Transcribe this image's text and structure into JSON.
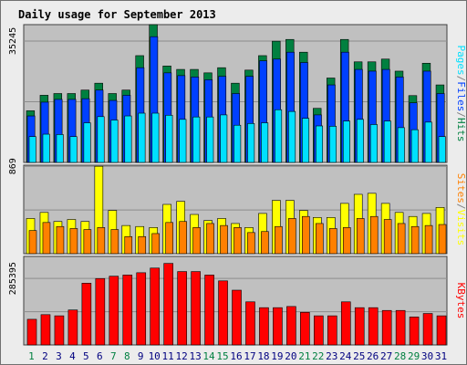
{
  "colors": {
    "hits": "#008040",
    "files": "#0040ff",
    "pages": "#00e0ff",
    "visits": "#ffff00",
    "sites": "#ff8000",
    "kbytes": "#ff0000",
    "title": "#0000a0",
    "weekend": "#008040",
    "weekday": "#000080",
    "panel": "#c0c0c0",
    "grid": "#8c8c8c"
  },
  "chart_data": {
    "type": "bar",
    "title": "Daily usage for September 2013",
    "categories": [
      "1",
      "2",
      "3",
      "4",
      "5",
      "6",
      "7",
      "8",
      "9",
      "10",
      "11",
      "12",
      "13",
      "14",
      "15",
      "16",
      "17",
      "18",
      "19",
      "20",
      "21",
      "22",
      "23",
      "24",
      "25",
      "26",
      "27",
      "28",
      "29",
      "30",
      "31"
    ],
    "weekend_days": [
      1,
      7,
      8,
      14,
      15,
      21,
      22,
      28,
      29
    ],
    "panels": [
      {
        "id": "hits-files-pages",
        "ytick_label": "35245",
        "ytick_value": 35245,
        "ymax": 40000,
        "legend": [
          "Pages",
          "/",
          "Files",
          "/",
          "Hits"
        ],
        "legend_colors": [
          "pages",
          "slash",
          "files",
          "slash",
          "hits"
        ],
        "series": [
          {
            "key": "hits",
            "values": [
              15000,
              19500,
              20000,
              20000,
              21000,
              23000,
              20000,
              21000,
              31000,
              40000,
              28000,
              27000,
              27000,
              26000,
              27500,
              23000,
              26800,
              31000,
              35200,
              35700,
              32000,
              15700,
              24500,
              35700,
              29200,
              29200,
              30000,
              26500,
              19400,
              28800,
              22500
            ]
          },
          {
            "key": "files",
            "values": [
              13500,
              17500,
              18300,
              18300,
              18500,
              21000,
              18000,
              19500,
              27500,
              36500,
              26000,
              25200,
              24800,
              24000,
              25000,
              20000,
              25000,
              29500,
              30000,
              32000,
              29000,
              13800,
              22500,
              32000,
              27000,
              26500,
              27000,
              24800,
              17300,
              26500,
              20000
            ]
          },
          {
            "key": "pages",
            "values": [
              7500,
              8200,
              8100,
              7500,
              11500,
              13300,
              12300,
              13500,
              14300,
              14300,
              13700,
              12500,
              13200,
              13200,
              13800,
              10800,
              11300,
              11500,
              15300,
              14800,
              12800,
              10600,
              10500,
              12000,
              12500,
              11000,
              12000,
              10100,
              9500,
              11700,
              7500
            ]
          }
        ]
      },
      {
        "id": "visits-sites",
        "ytick_label": "869",
        "ytick_value": 869,
        "ymax": 880,
        "legend": [
          "Sites",
          "/",
          "Visits"
        ],
        "legend_colors": [
          "sites",
          "slash",
          "visits"
        ],
        "series": [
          {
            "key": "visits",
            "values": [
              350,
              410,
              320,
              340,
              320,
              869,
              430,
              280,
              270,
              260,
              490,
              520,
              390,
              330,
              350,
              300,
              260,
              400,
              530,
              530,
              430,
              360,
              360,
              500,
              590,
              600,
              500,
              410,
              370,
              400,
              460
            ]
          },
          {
            "key": "sites",
            "values": [
              230,
              310,
              270,
              250,
              240,
              260,
              240,
              170,
              170,
              200,
              310,
              320,
              260,
              300,
              280,
              260,
              210,
              220,
              270,
              350,
              370,
              300,
              250,
              260,
              350,
              370,
              340,
              300,
              270,
              280,
              290
            ]
          }
        ]
      },
      {
        "id": "kbytes",
        "ytick_label": "285395",
        "ytick_value": 285395,
        "ymax": 380000,
        "legend": [
          "KBytes"
        ],
        "legend_colors": [
          "kbytes"
        ],
        "series": [
          {
            "key": "kbytes",
            "values": [
              110000,
              130000,
              125000,
              150000,
              265000,
              285000,
              295000,
              300000,
              310000,
              330000,
              350000,
              315000,
              315000,
              300000,
              275000,
              235000,
              185000,
              160000,
              160000,
              165000,
              140000,
              125000,
              125000,
              185000,
              160000,
              160000,
              148000,
              148000,
              120000,
              135000,
              125000
            ]
          }
        ]
      }
    ]
  }
}
